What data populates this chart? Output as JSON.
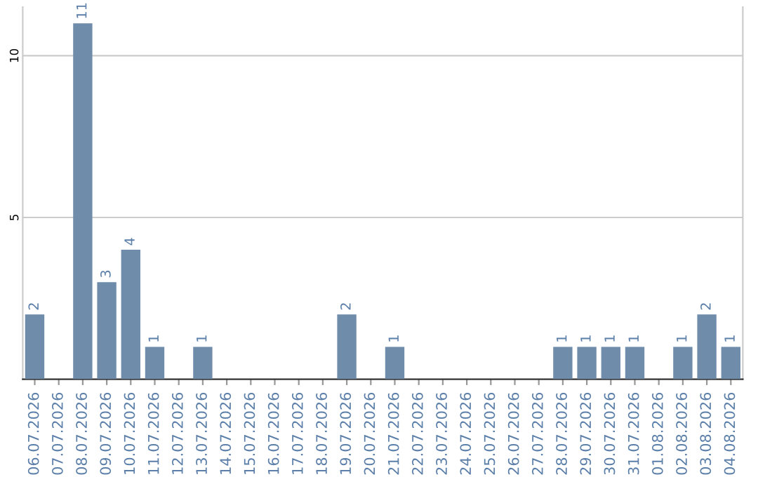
{
  "chart_data": {
    "type": "bar",
    "categories": [
      "06.07.2026",
      "07.07.2026",
      "08.07.2026",
      "09.07.2026",
      "10.07.2026",
      "11.07.2026",
      "12.07.2026",
      "13.07.2026",
      "14.07.2026",
      "15.07.2026",
      "16.07.2026",
      "17.07.2026",
      "18.07.2026",
      "19.07.2026",
      "20.07.2026",
      "21.07.2026",
      "22.07.2026",
      "23.07.2026",
      "24.07.2026",
      "25.07.2026",
      "26.07.2026",
      "27.07.2026",
      "28.07.2026",
      "29.07.2026",
      "30.07.2026",
      "31.07.2026",
      "01.08.2026",
      "02.08.2026",
      "03.08.2026",
      "04.08.2026"
    ],
    "values": [
      2,
      0,
      11,
      3,
      4,
      1,
      0,
      1,
      0,
      0,
      0,
      0,
      0,
      2,
      0,
      1,
      0,
      0,
      0,
      0,
      0,
      0,
      1,
      1,
      1,
      1,
      0,
      1,
      2,
      1
    ],
    "value_labels": [
      "2",
      null,
      "11",
      "3",
      "4",
      "1",
      null,
      "1",
      null,
      null,
      null,
      null,
      null,
      "2",
      null,
      "1",
      null,
      null,
      null,
      null,
      null,
      null,
      "1",
      "1",
      "1",
      "1",
      null,
      "1",
      "2",
      "1"
    ],
    "color": "#6f8cab",
    "ylim": [
      0,
      11.5
    ],
    "yticks": [
      5,
      10
    ],
    "grid": "y"
  }
}
